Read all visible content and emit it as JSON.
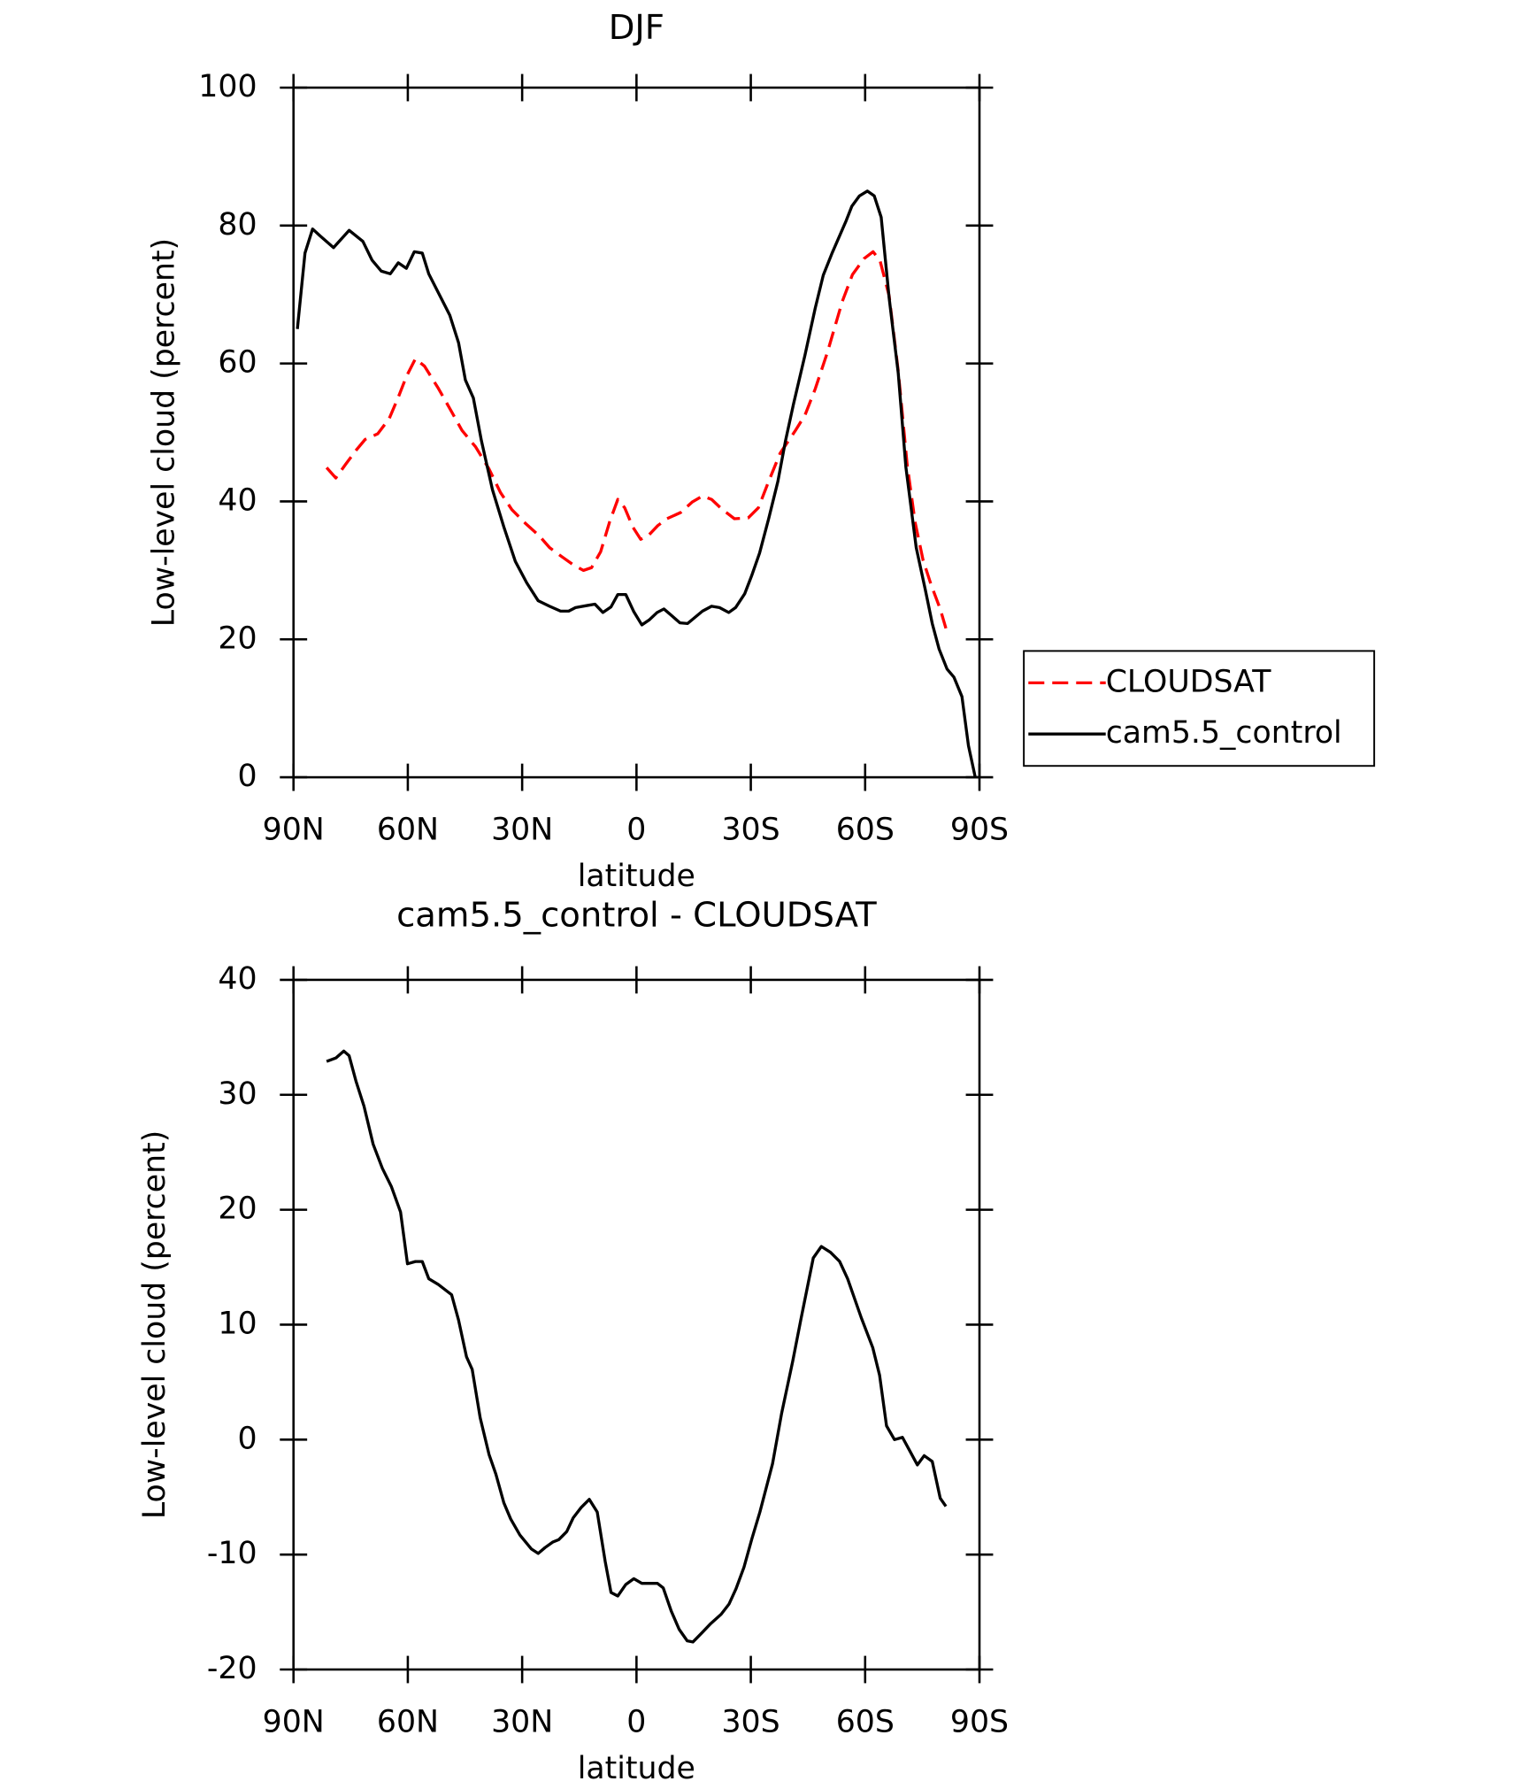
{
  "chart_data": [
    {
      "type": "line",
      "title": "DJF",
      "xlabel": "latitude",
      "ylabel": "Low-level cloud (percent)",
      "xlim": [
        90,
        -90
      ],
      "xticks": [
        {
          "value": 90,
          "label": "90N"
        },
        {
          "value": 60,
          "label": "60N"
        },
        {
          "value": 30,
          "label": "30N"
        },
        0,
        {
          "value": -30,
          "label": "30S"
        },
        {
          "value": -60,
          "label": "60S"
        },
        {
          "value": -90,
          "label": "90S"
        }
      ],
      "ylim": [
        0,
        100
      ],
      "yticks": [
        0,
        20,
        40,
        60,
        80,
        100
      ],
      "legend": "right",
      "series": [
        {
          "name": "CLOUDSAT",
          "color": "#ff0000",
          "dashed": true,
          "x": [
            81.3,
            78.9,
            76.3,
            73.6,
            71.2,
            67.9,
            64.9,
            62.5,
            60.4,
            58,
            55.6,
            52,
            48.5,
            45.8,
            42.2,
            38.7,
            35.7,
            32.7,
            29.1,
            25.5,
            22.8,
            19.6,
            16.3,
            13.9,
            11.8,
            9.4,
            7,
            4.9,
            3.1,
            1,
            -1.1,
            -3.2,
            -5.6,
            -8,
            -11.6,
            -14.6,
            -17.3,
            -19.7,
            -22.4,
            -25.7,
            -29.3,
            -32,
            -34.7,
            -37.7,
            -41.6,
            -44.2,
            -46.9,
            -50.1,
            -54,
            -56.7,
            -59.7,
            -62.1,
            -63.9,
            -66.3,
            -68.7,
            -71,
            -73.1,
            -75.2,
            -77.3,
            -79.7,
            -81.2
          ],
          "values": [
            44.9,
            43.4,
            45.4,
            47.4,
            49,
            49.8,
            52,
            55.1,
            58.1,
            60.7,
            59.6,
            56.4,
            53,
            50.3,
            47.9,
            44.7,
            41.3,
            38.8,
            36.8,
            35,
            33.3,
            32,
            30.7,
            30,
            30.4,
            32.7,
            37.1,
            40.3,
            39.1,
            36.3,
            34.5,
            35.1,
            36.5,
            37.5,
            38.4,
            39.9,
            40.8,
            40.3,
            38.9,
            37.5,
            37.6,
            39.1,
            42.9,
            47,
            50.2,
            52.5,
            56.3,
            61.6,
            69,
            72.9,
            75.2,
            76.2,
            74.9,
            69.8,
            58.9,
            45.4,
            37,
            31.5,
            27.9,
            24.4,
            21.6
          ]
        },
        {
          "name": "cam5.5_control",
          "color": "#000000",
          "dashed": false,
          "x": [
            89,
            87,
            85,
            83,
            79.5,
            75.4,
            71.8,
            69.4,
            67,
            64.6,
            62.5,
            60.4,
            58.3,
            56.2,
            54.5,
            49,
            46.7,
            44.9,
            42.8,
            40.7,
            37.8,
            34.8,
            31.8,
            28.8,
            25.8,
            22.8,
            19.9,
            17.8,
            16,
            13,
            10.9,
            8.8,
            6.7,
            4.9,
            2.8,
            0.7,
            -1.4,
            -3.3,
            -5.4,
            -7.2,
            -9.3,
            -11.4,
            -13.4,
            -17.3,
            -19.7,
            -21.8,
            -24.2,
            -26,
            -28.4,
            -30.2,
            -32.3,
            -34.7,
            -37.1,
            -39.1,
            -41.2,
            -44.2,
            -46.9,
            -49,
            -51.4,
            -55,
            -56.5,
            -58.5,
            -60.6,
            -62.4,
            -64.2,
            -66.3,
            -68.7,
            -70.7,
            -73.4,
            -75.8,
            -77.6,
            -79.4,
            -81.5,
            -83.3,
            -85.4,
            -87.1,
            -88.9
          ],
          "values": [
            65,
            76,
            79.5,
            78.5,
            76.8,
            79.3,
            77.7,
            75,
            73.4,
            73,
            74.6,
            73.8,
            76.2,
            76,
            73,
            67,
            63,
            57.6,
            55,
            48.8,
            41.7,
            36.3,
            31.3,
            28.2,
            25.6,
            24.8,
            24.1,
            24.1,
            24.6,
            24.9,
            25.1,
            23.9,
            24.7,
            26.5,
            26.5,
            24,
            22.1,
            22.8,
            23.9,
            24.4,
            23.4,
            22.4,
            22.3,
            24.1,
            24.8,
            24.6,
            23.9,
            24.6,
            26.6,
            29.2,
            32.5,
            37.5,
            42.9,
            48.8,
            54.1,
            61.2,
            68,
            72.8,
            76.1,
            80.7,
            82.8,
            84.3,
            85,
            84.3,
            81.2,
            69.5,
            58.6,
            45,
            33.3,
            27.2,
            22.3,
            18.6,
            15.7,
            14.5,
            11.7,
            4.6,
            0
          ]
        }
      ]
    },
    {
      "type": "line",
      "title": "cam5.5_control - CLOUDSAT",
      "xlabel": "latitude",
      "ylabel": "Low-level cloud (percent)",
      "xlim": [
        90,
        -90
      ],
      "xticks": [
        {
          "value": 90,
          "label": "90N"
        },
        {
          "value": 60,
          "label": "60N"
        },
        {
          "value": 30,
          "label": "30N"
        },
        0,
        {
          "value": -30,
          "label": "30S"
        },
        {
          "value": -60,
          "label": "60S"
        },
        {
          "value": -90,
          "label": "90S"
        }
      ],
      "ylim": [
        -20,
        40
      ],
      "yticks": [
        -20,
        -10,
        0,
        10,
        20,
        30,
        40
      ],
      "series": [
        {
          "color": "#000000",
          "dashed": false,
          "x": [
            81.3,
            78.9,
            76.8,
            75.4,
            73.6,
            71.5,
            69.1,
            66.7,
            64.3,
            61.9,
            60.1,
            58,
            56.2,
            54.5,
            52,
            48.5,
            46.7,
            44.6,
            43.1,
            41,
            38.7,
            36.9,
            34.8,
            33,
            30.6,
            27.6,
            25.8,
            24,
            21.9,
            20.4,
            18.3,
            16.6,
            14.5,
            12.4,
            10.3,
            8.2,
            6.7,
            4.9,
            2.8,
            0.7,
            -1.4,
            -3.4,
            -5.5,
            -7,
            -9.1,
            -11.2,
            -13.3,
            -14.8,
            -17.2,
            -19.5,
            -22.2,
            -24.3,
            -26.1,
            -28.2,
            -30.3,
            -32.4,
            -35.7,
            -38.1,
            -41,
            -43.1,
            -46.4,
            -48.5,
            -50.9,
            -53.3,
            -55.4,
            -59,
            -62,
            -63.8,
            -65.6,
            -67.7,
            -69.8,
            -71.9,
            -73.7,
            -75.5,
            -77.6,
            -79.7,
            -81.2
          ],
          "values": [
            32.9,
            33.2,
            33.8,
            33.4,
            31.2,
            29,
            25.7,
            23.6,
            22,
            19.8,
            15.3,
            15.5,
            15.5,
            14,
            13.5,
            12.6,
            10.4,
            7.2,
            6.1,
            1.9,
            -1.3,
            -3,
            -5.5,
            -6.9,
            -8.3,
            -9.5,
            -9.9,
            -9.4,
            -8.9,
            -8.7,
            -8,
            -6.8,
            -5.9,
            -5.2,
            -6.3,
            -10.6,
            -13.3,
            -13.6,
            -12.6,
            -12.1,
            -12.5,
            -12.5,
            -12.5,
            -12.9,
            -14.9,
            -16.5,
            -17.5,
            -17.6,
            -16.8,
            -16,
            -15.2,
            -14.3,
            -13,
            -11.1,
            -8.6,
            -6.3,
            -2.1,
            2.3,
            6.8,
            10.4,
            15.8,
            16.8,
            16.3,
            15.5,
            14,
            10.6,
            8,
            5.6,
            1.2,
            0,
            0.2,
            -1.1,
            -2.2,
            -1.4,
            -1.9,
            -5.1,
            -5.8
          ]
        }
      ]
    }
  ]
}
